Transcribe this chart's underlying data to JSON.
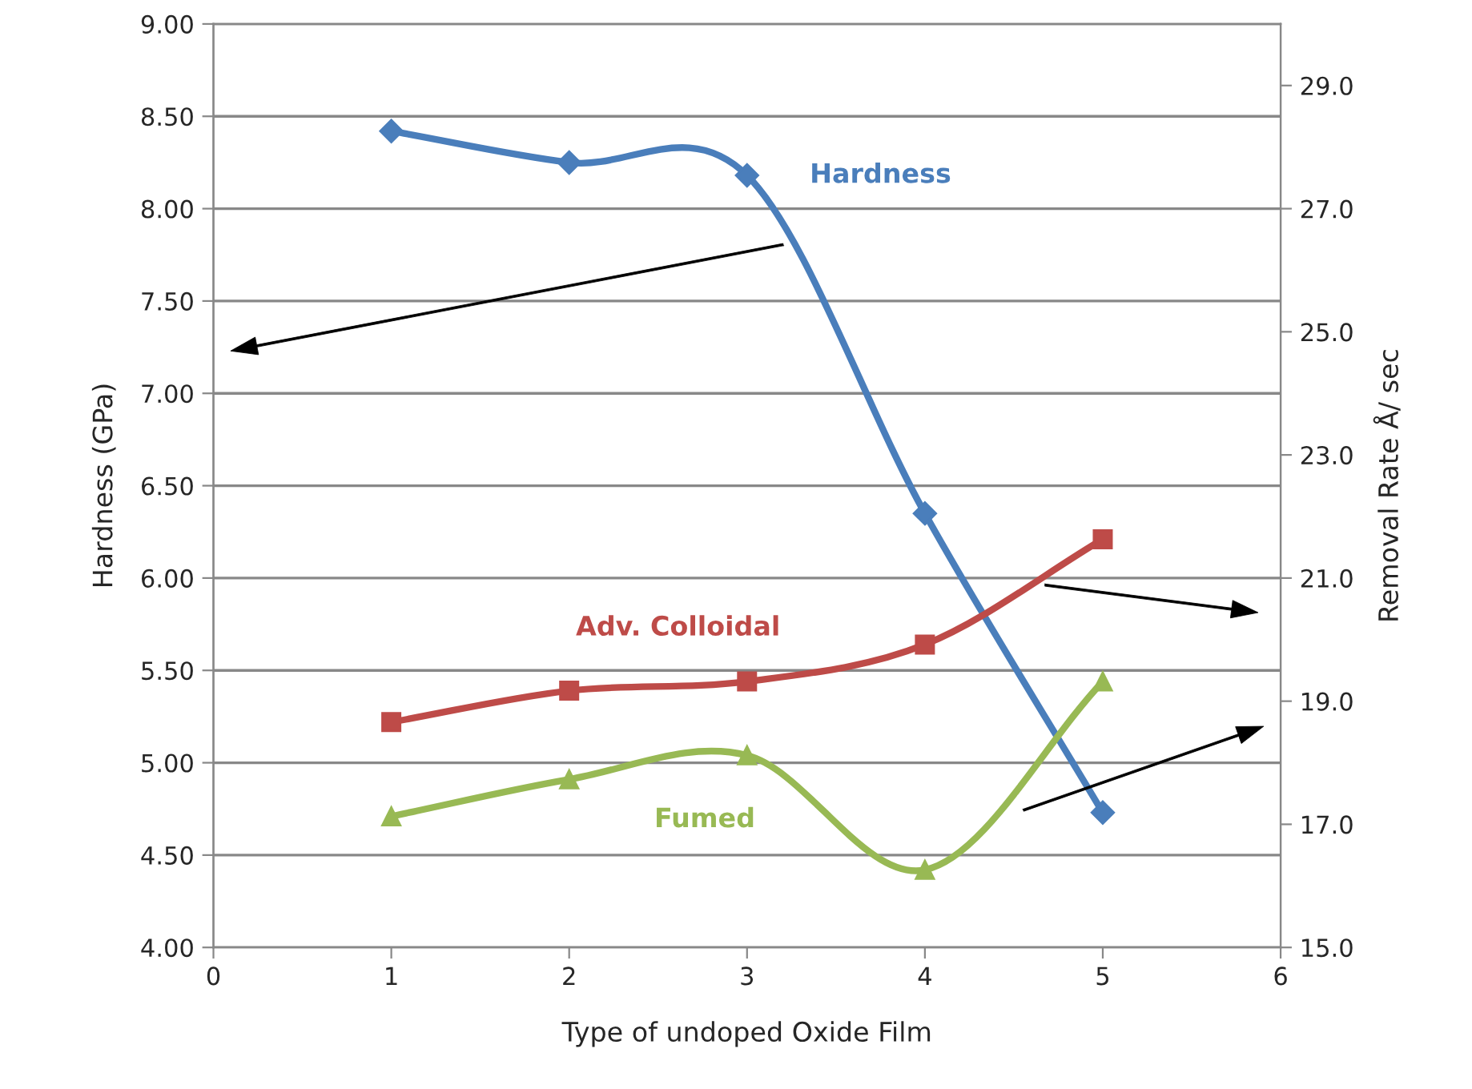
{
  "chart_data": {
    "type": "line",
    "xlabel": "Type of undoped Oxide Film",
    "ylabel": "Hardness (GPa)",
    "y2label": "Removal Rate Å/ sec",
    "x": [
      1,
      2,
      3,
      4,
      5
    ],
    "series": [
      {
        "name": "Hardness",
        "color": "#4a7ebb",
        "marker": "diamond",
        "values": [
          8.42,
          8.25,
          8.18,
          6.35,
          4.73
        ]
      },
      {
        "name": "Adv. Colloidal",
        "color": "#be4b48",
        "marker": "square",
        "axis": "y2",
        "values": [
          18.66,
          19.17,
          19.32,
          19.92,
          21.63
        ]
      },
      {
        "name": "Fumed",
        "color": "#98b954",
        "marker": "triangle",
        "axis": "y2",
        "values": [
          17.13,
          17.73,
          18.12,
          16.26,
          19.32
        ]
      }
    ],
    "xlim": [
      0,
      6
    ],
    "xticks": [
      0,
      1,
      2,
      3,
      4,
      5,
      6
    ],
    "ylim": [
      4.0,
      9.0
    ],
    "yticks": [
      {
        "value": 4.0,
        "label": "4.00"
      },
      {
        "value": 4.5,
        "label": "4.50"
      },
      {
        "value": 5.0,
        "label": "5.00"
      },
      {
        "value": 5.5,
        "label": "5.50"
      },
      {
        "value": 6.0,
        "label": "6.00"
      },
      {
        "value": 6.5,
        "label": "6.50"
      },
      {
        "value": 7.0,
        "label": "7.00"
      },
      {
        "value": 7.5,
        "label": "7.50"
      },
      {
        "value": 8.0,
        "label": "8.00"
      },
      {
        "value": 8.5,
        "label": "8.50"
      },
      {
        "value": 9.0,
        "label": "9.00"
      }
    ],
    "y2lim": [
      15.0,
      30.0
    ],
    "y2ticks": [
      {
        "value": 15,
        "label": "15.0"
      },
      {
        "value": 17,
        "label": "17.0"
      },
      {
        "value": 19,
        "label": "19.0"
      },
      {
        "value": 21,
        "label": "21.0"
      },
      {
        "value": 23,
        "label": "23.0"
      },
      {
        "value": 25,
        "label": "25.0"
      },
      {
        "value": 27,
        "label": "27.0"
      },
      {
        "value": 29,
        "label": "29.0"
      }
    ],
    "grid": "y",
    "legend": false
  }
}
